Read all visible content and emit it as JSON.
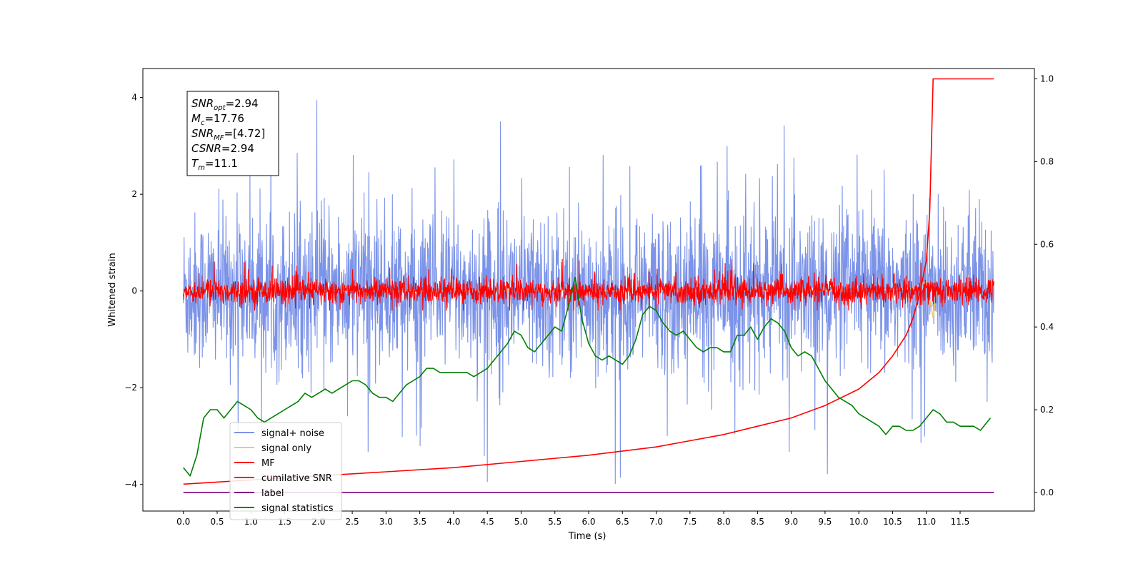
{
  "chart_data": {
    "type": "line",
    "xlabel": "Time (s)",
    "ylabel_left": "Whitened strain",
    "ylabel_right": "",
    "xlim": [
      -0.6,
      12.6
    ],
    "ylim_left": [
      -4.55,
      4.6
    ],
    "ylim_right": [
      -0.045,
      1.025
    ],
    "x_ticks": [
      "0.0",
      "0.5",
      "1.0",
      "1.5",
      "2.0",
      "2.5",
      "3.0",
      "3.5",
      "4.0",
      "4.5",
      "5.0",
      "5.5",
      "6.0",
      "6.5",
      "7.0",
      "7.5",
      "8.0",
      "8.5",
      "9.0",
      "9.5",
      "10.0",
      "10.5",
      "11.0",
      "11.5"
    ],
    "y_ticks_left": [
      "4",
      "2",
      "0",
      "−2",
      "−4"
    ],
    "y_ticks_right": [
      "1.0",
      "0.8",
      "0.6",
      "0.4",
      "0.2",
      "0.0"
    ],
    "grid": false,
    "legend_position": "lower-left",
    "annotation": {
      "lines": [
        {
          "base": "SNR",
          "sub": "opt",
          "value": "=2.94"
        },
        {
          "base": "M",
          "sub": "c",
          "value": "=17.76"
        },
        {
          "base": "SNR",
          "sub": "MF",
          "value": "=[4.72]"
        },
        {
          "base": "CSNR",
          "sub": "",
          "value": "=2.94"
        },
        {
          "base": "T",
          "sub": "m",
          "value": "=11.1"
        }
      ]
    },
    "series": [
      {
        "name": "signal+ noise",
        "color": "#7b93e8",
        "axis": "left",
        "kind": "noise",
        "center": 0.0,
        "band": 1.9,
        "extremes": [
          -4.1,
          4.15
        ],
        "x_range": [
          0.0,
          12.0
        ]
      },
      {
        "name": "signal only",
        "color": "#f5c76a",
        "axis": "left",
        "kind": "chirp",
        "x": [
          0.0,
          10.0,
          10.8,
          11.0,
          11.1,
          11.15
        ],
        "values": [
          0.0,
          0.0,
          0.05,
          0.2,
          -0.55,
          0.0
        ]
      },
      {
        "name": "MF",
        "color": "#ff0000",
        "axis": "left",
        "kind": "noise",
        "center": 0.0,
        "band": 0.32,
        "extremes": [
          -0.4,
          0.95
        ],
        "x_range": [
          0.0,
          12.0
        ]
      },
      {
        "name": "cumilative SNR",
        "color": "#ff0000",
        "axis": "right",
        "kind": "line",
        "x": [
          0.0,
          0.5,
          1.0,
          2.0,
          3.0,
          4.0,
          5.0,
          6.0,
          7.0,
          7.5,
          8.0,
          8.5,
          9.0,
          9.5,
          10.0,
          10.3,
          10.5,
          10.7,
          10.8,
          10.9,
          11.0,
          11.05,
          11.1,
          12.0
        ],
        "values": [
          0.02,
          0.025,
          0.03,
          0.04,
          0.05,
          0.06,
          0.075,
          0.09,
          0.11,
          0.125,
          0.14,
          0.16,
          0.18,
          0.21,
          0.25,
          0.29,
          0.33,
          0.38,
          0.42,
          0.48,
          0.56,
          0.68,
          1.0,
          1.0
        ]
      },
      {
        "name": "label",
        "color": "#800080",
        "axis": "right",
        "kind": "line",
        "x": [
          0.0,
          12.0
        ],
        "values": [
          0.0,
          0.0
        ]
      },
      {
        "name": "signal statistics",
        "color": "#008000",
        "axis": "right",
        "kind": "line",
        "x": [
          0.0,
          0.1,
          0.2,
          0.3,
          0.4,
          0.5,
          0.6,
          0.7,
          0.8,
          0.9,
          1.0,
          1.1,
          1.2,
          1.3,
          1.4,
          1.5,
          1.6,
          1.7,
          1.8,
          1.9,
          2.0,
          2.1,
          2.2,
          2.3,
          2.4,
          2.5,
          2.6,
          2.7,
          2.8,
          2.9,
          3.0,
          3.1,
          3.2,
          3.3,
          3.4,
          3.5,
          3.6,
          3.7,
          3.8,
          3.9,
          4.0,
          4.1,
          4.2,
          4.3,
          4.4,
          4.5,
          4.6,
          4.7,
          4.8,
          4.9,
          5.0,
          5.1,
          5.2,
          5.3,
          5.4,
          5.5,
          5.6,
          5.7,
          5.8,
          5.9,
          6.0,
          6.1,
          6.2,
          6.3,
          6.4,
          6.5,
          6.6,
          6.7,
          6.8,
          6.9,
          7.0,
          7.1,
          7.2,
          7.3,
          7.4,
          7.5,
          7.6,
          7.7,
          7.8,
          7.9,
          8.0,
          8.1,
          8.2,
          8.3,
          8.4,
          8.5,
          8.6,
          8.7,
          8.8,
          8.9,
          9.0,
          9.1,
          9.2,
          9.3,
          9.4,
          9.5,
          9.6,
          9.7,
          9.8,
          9.9,
          10.0,
          10.1,
          10.2,
          10.3,
          10.4,
          10.5,
          10.6,
          10.7,
          10.8,
          10.9,
          11.0,
          11.1,
          11.2,
          11.3,
          11.4,
          11.5,
          11.6,
          11.7,
          11.8,
          11.9,
          11.95
        ],
        "values": [
          0.06,
          0.04,
          0.09,
          0.18,
          0.2,
          0.2,
          0.18,
          0.2,
          0.22,
          0.21,
          0.2,
          0.18,
          0.17,
          0.18,
          0.19,
          0.2,
          0.21,
          0.22,
          0.24,
          0.23,
          0.24,
          0.25,
          0.24,
          0.25,
          0.26,
          0.27,
          0.27,
          0.26,
          0.24,
          0.23,
          0.23,
          0.22,
          0.24,
          0.26,
          0.27,
          0.28,
          0.3,
          0.3,
          0.29,
          0.29,
          0.29,
          0.29,
          0.29,
          0.28,
          0.29,
          0.3,
          0.32,
          0.34,
          0.36,
          0.39,
          0.38,
          0.35,
          0.34,
          0.36,
          0.38,
          0.4,
          0.39,
          0.45,
          0.52,
          0.42,
          0.36,
          0.33,
          0.32,
          0.33,
          0.32,
          0.31,
          0.33,
          0.37,
          0.43,
          0.45,
          0.44,
          0.41,
          0.39,
          0.38,
          0.39,
          0.37,
          0.35,
          0.34,
          0.35,
          0.35,
          0.34,
          0.34,
          0.38,
          0.38,
          0.4,
          0.37,
          0.4,
          0.42,
          0.41,
          0.39,
          0.35,
          0.33,
          0.34,
          0.33,
          0.3,
          0.27,
          0.25,
          0.23,
          0.22,
          0.21,
          0.19,
          0.18,
          0.17,
          0.16,
          0.14,
          0.16,
          0.16,
          0.15,
          0.15,
          0.16,
          0.18,
          0.2,
          0.19,
          0.17,
          0.17,
          0.16,
          0.16,
          0.16,
          0.15,
          0.17,
          0.18
        ]
      }
    ]
  }
}
